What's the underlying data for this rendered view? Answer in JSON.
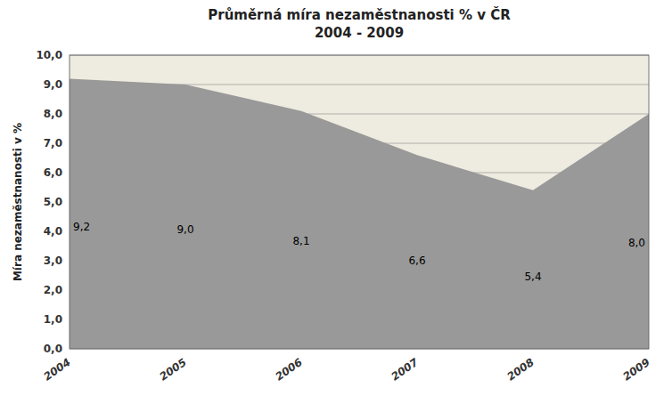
{
  "chart_data": {
    "type": "area",
    "title": "Průměrná míra nezaměstnanosti % v ČR",
    "subtitle": "2004 - 2009",
    "y_label": "Míra nezaměstnanosti v %",
    "x": [
      2004,
      2005,
      2006,
      2007,
      2008,
      2009
    ],
    "values": [
      9.2,
      9.0,
      8.1,
      6.6,
      5.4,
      8.0
    ],
    "value_labels": [
      "9,2",
      "9,0",
      "8,1",
      "6,6",
      "5,4",
      "8,0"
    ],
    "data_labels": true,
    "color": "#999999",
    "xlim": [
      2004,
      2009
    ],
    "xticks": [
      2004,
      2005,
      2006,
      2007,
      2008,
      2009
    ],
    "ylim": [
      0,
      10
    ],
    "yticks": [
      {
        "value": 0.0,
        "label": "0,0"
      },
      {
        "value": 1.0,
        "label": "1,0"
      },
      {
        "value": 2.0,
        "label": "2,0"
      },
      {
        "value": 3.0,
        "label": "3,0"
      },
      {
        "value": 4.0,
        "label": "4,0"
      },
      {
        "value": 5.0,
        "label": "5,0"
      },
      {
        "value": 6.0,
        "label": "6,0"
      },
      {
        "value": 7.0,
        "label": "7,0"
      },
      {
        "value": 8.0,
        "label": "8,0"
      },
      {
        "value": 9.0,
        "label": "9,0"
      },
      {
        "value": 10.0,
        "label": "10,0"
      }
    ],
    "grid": true
  }
}
